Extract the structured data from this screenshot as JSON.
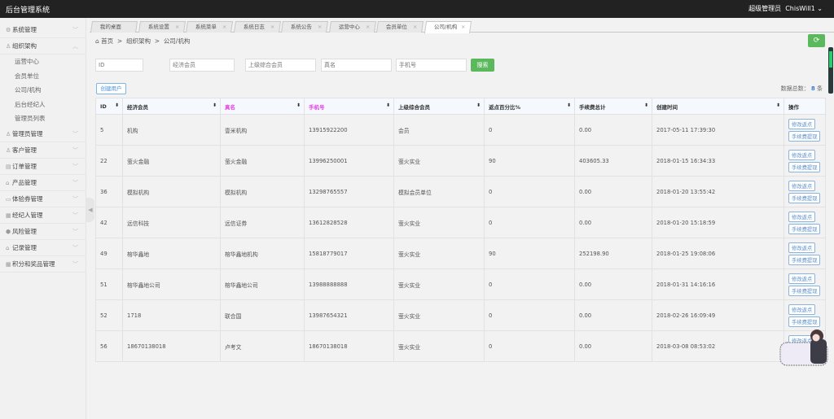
{
  "app": {
    "title": "后台管理系统",
    "role": "超级管理员",
    "user": "ChisWill1"
  },
  "sidebar": {
    "items": [
      {
        "label": "系统管理",
        "icon": "gear-icon",
        "expanded": false
      },
      {
        "label": "组织架构",
        "icon": "user-icon",
        "expanded": true,
        "children": [
          "运营中心",
          "会员单位",
          "公司/机构",
          "后台经纪人",
          "管理员列表"
        ]
      },
      {
        "label": "管理员管理",
        "icon": "user-icon"
      },
      {
        "label": "客户管理",
        "icon": "user-outline-icon"
      },
      {
        "label": "订单管理",
        "icon": "order-icon"
      },
      {
        "label": "产品管理",
        "icon": "bag-icon"
      },
      {
        "label": "体验券管理",
        "icon": "ticket-icon"
      },
      {
        "label": "经纪人管理",
        "icon": "book-icon"
      },
      {
        "label": "风险管理",
        "icon": "shield-icon"
      },
      {
        "label": "记录管理",
        "icon": "bag-icon"
      },
      {
        "label": "积分和奖品管理",
        "icon": "book-icon"
      }
    ]
  },
  "tabs": [
    "我的桌面",
    "系统设置",
    "系统菜单",
    "系统日志",
    "系统公告",
    "运营中心",
    "会员单位",
    "公司/机构"
  ],
  "active_tab": "公司/机构",
  "breadcrumb": [
    "首页",
    "组织架构",
    "公司/机构"
  ],
  "search": {
    "placeholders": [
      "ID",
      "经济会员",
      "上级综合会员",
      "真名",
      "手机号"
    ],
    "button": "搜索"
  },
  "create_button": "创建用户",
  "total": {
    "label": "数据总数：",
    "count": "8",
    "unit": "条"
  },
  "table": {
    "columns": [
      "ID",
      "经济会员",
      "真名",
      "手机号",
      "上级综合会员",
      "返点百分比%",
      "手续费总计",
      "创建时间",
      "操作"
    ],
    "actions": [
      "修改返点",
      "手续费提现"
    ],
    "rows": [
      [
        "5",
        "机构",
        "壹米机构",
        "13915922200",
        "会员",
        "0",
        "0.00",
        "2017-05-11 17:39:30"
      ],
      [
        "22",
        "萤火金融",
        "萤火金融",
        "13996250001",
        "萤火实业",
        "90",
        "403605.33",
        "2018-01-15 16:34:33"
      ],
      [
        "36",
        "模拟机构",
        "模拟机构",
        "13298765557",
        "模拟会员单位",
        "0",
        "0.00",
        "2018-01-20 13:55:42"
      ],
      [
        "42",
        "远信科技",
        "远信证券",
        "13612828528",
        "萤火实业",
        "0",
        "0.00",
        "2018-01-20 15:18:59"
      ],
      [
        "49",
        "榕华鑫地",
        "榕华鑫地机构",
        "15818779017",
        "萤火实业",
        "90",
        "252198.90",
        "2018-01-25 19:08:06"
      ],
      [
        "51",
        "榕华鑫地公司",
        "榕华鑫地公司",
        "13988888888",
        "萤火实业",
        "0",
        "0.00",
        "2018-01-31 14:16:16"
      ],
      [
        "52",
        "1718",
        "联合国",
        "13987654321",
        "萤火实业",
        "0",
        "0.00",
        "2018-02-26 16:09:49"
      ],
      [
        "56",
        "18670138018",
        "卢考文",
        "18670138018",
        "萤火实业",
        "0",
        "0.00",
        "2018-03-08 08:53:02"
      ]
    ]
  },
  "colors": {
    "topbar": "#222222",
    "green": "#5cb85c",
    "link": "#4a90d9",
    "pink_header": "#e83ee8"
  }
}
